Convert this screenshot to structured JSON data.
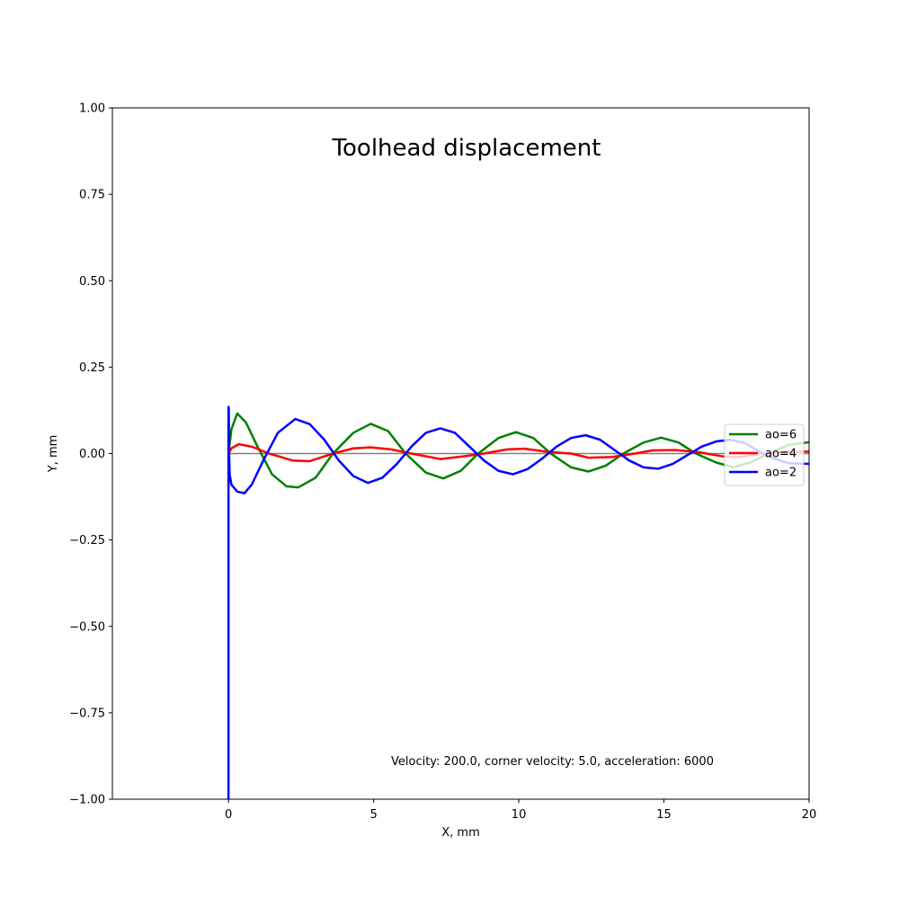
{
  "chart_data": {
    "type": "line",
    "title": "Toolhead displacement",
    "xlabel": "X, mm",
    "ylabel": "Y, mm",
    "xlim": [
      -4,
      20
    ],
    "ylim": [
      -1.0,
      1.0
    ],
    "xticks": [
      0,
      5,
      10,
      15,
      20
    ],
    "xtick_labels": [
      "0",
      "5",
      "10",
      "15",
      "20"
    ],
    "yticks": [
      1.0,
      0.75,
      0.5,
      0.25,
      0.0,
      -0.25,
      -0.5,
      -0.75,
      -1.0
    ],
    "ytick_labels": [
      "1.00",
      "0.75",
      "0.50",
      "0.25",
      "0.00",
      "−0.25",
      "−0.50",
      "−0.75",
      "−1.00"
    ],
    "grid": false,
    "legend_position": "right",
    "annotation": "Velocity: 200.0, corner velocity: 5.0, acceleration: 6000",
    "reference_line": {
      "y": 0.0,
      "x_start": 0,
      "x_end": 20,
      "color": "#808080"
    },
    "series": [
      {
        "name": "ao=6",
        "color": "#008000",
        "x": [
          0,
          0.1,
          0.3,
          0.6,
          1.0,
          1.5,
          2.0,
          2.4,
          3.0,
          3.6,
          4.3,
          4.9,
          5.5,
          6.1,
          6.8,
          7.4,
          8.0,
          8.6,
          9.3,
          9.9,
          10.5,
          11.1,
          11.8,
          12.4,
          13.0,
          13.6,
          14.3,
          14.9,
          15.5,
          16.1,
          16.8,
          17.4,
          18.0,
          18.6,
          19.3,
          20.0
        ],
        "y": [
          0.0,
          0.07,
          0.116,
          0.09,
          0.02,
          -0.06,
          -0.095,
          -0.098,
          -0.07,
          0.0,
          0.06,
          0.086,
          0.065,
          0.0,
          -0.055,
          -0.072,
          -0.05,
          0.0,
          0.045,
          0.062,
          0.045,
          0.0,
          -0.04,
          -0.052,
          -0.035,
          0.0,
          0.032,
          0.046,
          0.032,
          0.0,
          -0.026,
          -0.04,
          -0.025,
          0.0,
          0.025,
          0.033
        ]
      },
      {
        "name": "ao=4",
        "color": "#ff0000",
        "x": [
          0,
          0.1,
          0.35,
          0.8,
          1.4,
          2.2,
          2.8,
          3.6,
          4.3,
          4.9,
          5.6,
          6.3,
          7.3,
          8.1,
          8.8,
          9.6,
          10.2,
          11.0,
          11.8,
          12.4,
          13.2,
          14.0,
          14.6,
          15.4,
          16.2,
          17.0,
          17.6,
          18.4,
          19.2,
          20.0
        ],
        "y": [
          0.0,
          0.015,
          0.027,
          0.02,
          0.0,
          -0.02,
          -0.022,
          0.0,
          0.015,
          0.018,
          0.012,
          0.0,
          -0.016,
          -0.008,
          0.0,
          0.012,
          0.014,
          0.005,
          0.0,
          -0.012,
          -0.01,
          0.0,
          0.009,
          0.01,
          0.004,
          -0.008,
          -0.01,
          0.0,
          0.005,
          0.006
        ]
      },
      {
        "name": "ao=2",
        "color": "#0000ff",
        "x": [
          0,
          0.0,
          0.01,
          0.02,
          0.04,
          0.1,
          0.3,
          0.55,
          0.8,
          1.2,
          1.7,
          2.3,
          2.8,
          3.3,
          3.8,
          4.3,
          4.8,
          5.3,
          5.8,
          6.3,
          6.8,
          7.3,
          7.8,
          8.3,
          8.8,
          9.3,
          9.8,
          10.3,
          10.8,
          11.3,
          11.8,
          12.3,
          12.8,
          13.3,
          13.8,
          14.3,
          14.8,
          15.3,
          15.8,
          16.3,
          16.8,
          17.3,
          17.8,
          18.3,
          18.8,
          19.3,
          20.0
        ],
        "y": [
          -1.0,
          0.135,
          0.13,
          0.0,
          -0.06,
          -0.09,
          -0.11,
          -0.115,
          -0.09,
          -0.02,
          0.06,
          0.1,
          0.085,
          0.04,
          -0.02,
          -0.065,
          -0.085,
          -0.07,
          -0.03,
          0.02,
          0.06,
          0.073,
          0.06,
          0.02,
          -0.02,
          -0.05,
          -0.06,
          -0.045,
          -0.015,
          0.02,
          0.045,
          0.053,
          0.04,
          0.01,
          -0.02,
          -0.04,
          -0.044,
          -0.03,
          -0.005,
          0.02,
          0.035,
          0.04,
          0.03,
          0.005,
          -0.015,
          -0.028,
          -0.03
        ]
      }
    ]
  }
}
